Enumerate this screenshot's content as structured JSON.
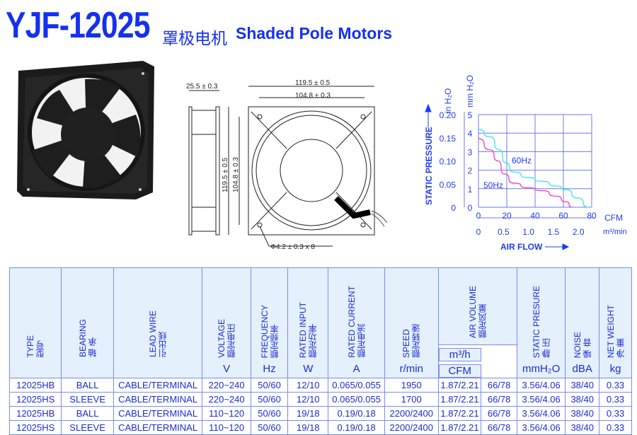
{
  "header": {
    "model": "YJF-12025",
    "subtitle_cn": "罩极电机",
    "subtitle_en": "Shaded Pole Motors"
  },
  "drawing": {
    "side_width": "25.5 ± 0.3",
    "outer_width": "119.5 ± 0.5",
    "hole_spacing_width": "104.8 ± 0.3",
    "outer_height": "119.5 ± 0.5",
    "hole_spacing_height": "104.8 ± 0.3",
    "hole_diameter": "Φ4.2 ± 0.3 x 8"
  },
  "chart_data": {
    "type": "line",
    "ylabel": "STATIC PRESSURE",
    "ylabel_unit_left": "in H₂O",
    "ylabel_unit_right": "mm H₂O",
    "xlabel": "AIR FLOW",
    "x_unit": "CFM",
    "x_unit_secondary": "m³/min",
    "xlim": [
      0,
      80
    ],
    "ylim": [
      0,
      5
    ],
    "x_ticks": [
      "0",
      "20",
      "40",
      "60",
      "80"
    ],
    "x_ticks_secondary": [
      "0",
      "0.5",
      "1.0",
      "1.5",
      "2.0"
    ],
    "y_ticks_mm": [
      "0",
      "1",
      "2",
      "3",
      "4",
      "5"
    ],
    "y_ticks_in": [
      "0",
      "0.05",
      "0.10",
      "0.15",
      "0.20"
    ],
    "grid": true,
    "series": [
      {
        "name": "60Hz",
        "color": "#33e6f0",
        "x": [
          0,
          8,
          15,
          19,
          25,
          35,
          45,
          55,
          62,
          70,
          78
        ],
        "y": [
          4.2,
          3.8,
          3.1,
          2.4,
          1.9,
          1.6,
          1.4,
          1.15,
          0.95,
          0.5,
          0
        ]
      },
      {
        "name": "50Hz",
        "color": "#f03ac8",
        "x": [
          0,
          8,
          14,
          18,
          25,
          35,
          45,
          55,
          62,
          66
        ],
        "y": [
          3.7,
          3.1,
          2.5,
          1.8,
          1.3,
          1.05,
          0.9,
          0.6,
          0.3,
          0
        ]
      }
    ]
  },
  "table": {
    "headers": [
      {
        "en": "TYPE",
        "cn": "型号",
        "unit": ""
      },
      {
        "en": "BEARING",
        "cn": "轴 承",
        "unit": ""
      },
      {
        "en": "LEAD WIRE",
        "cn": "引出线",
        "unit": ""
      },
      {
        "en": "VOLTAGE",
        "cn": "额定电压",
        "unit": "V"
      },
      {
        "en": "FREQUENCY",
        "cn": "额定频率",
        "unit": "Hz"
      },
      {
        "en": "RATED INPUT",
        "cn": "额定功率",
        "unit": "W"
      },
      {
        "en": "RATED CURRENT",
        "cn": "额定电流",
        "unit": "A"
      },
      {
        "en": "SPEED",
        "cn": "额定转速",
        "unit": "r/min"
      },
      {
        "en": "AIR VOLUME",
        "cn": "额定风量",
        "unit": "m³/h",
        "unit2": "CFM"
      },
      {
        "en": "STATIC PRESURE",
        "cn": "静 压",
        "unit": "mmH₂O"
      },
      {
        "en": "NOISE",
        "cn": "噪 音",
        "unit": "dBA"
      },
      {
        "en": "NET WEIGHT",
        "cn": "净 重",
        "unit": "kg"
      }
    ],
    "rows": [
      [
        "12025HB",
        "BALL",
        "CABLE/TERMINAL",
        "220~240",
        "50/60",
        "12/10",
        "0.065/0.055",
        "1950",
        "1.87/2.21",
        "66/78",
        "3.56/4.06",
        "38/40",
        "0.33"
      ],
      [
        "12025HS",
        "SLEEVE",
        "CABLE/TERMINAL",
        "220~240",
        "50/60",
        "12/10",
        "0.065/0.055",
        "1700",
        "1.87/2.21",
        "66/78",
        "3.56/4.06",
        "38/40",
        "0.33"
      ],
      [
        "12025HB",
        "BALL",
        "CABLE/TERMINAL",
        "110~120",
        "50/60",
        "19/18",
        "0.19/0.18",
        "2200/2400",
        "1.87/2.21",
        "66/78",
        "3.56/4.06",
        "38/40",
        "0.33"
      ],
      [
        "12025HS",
        "SLEEVE",
        "CABLE/TERMINAL",
        "110~120",
        "50/60",
        "19/18",
        "0.19/0.18",
        "2200/2400",
        "1.87/2.21",
        "66/78",
        "3.56/4.06",
        "38/40",
        "0.33"
      ]
    ]
  }
}
